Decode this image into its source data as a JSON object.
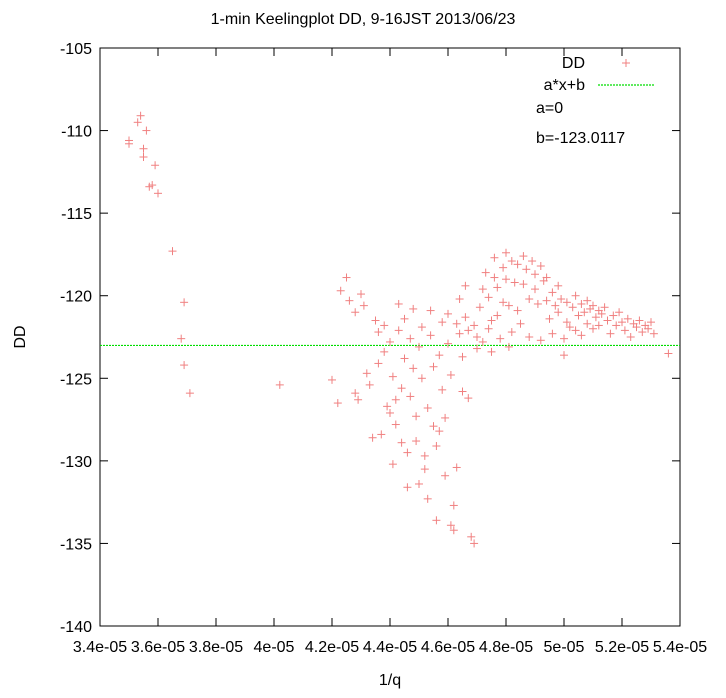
{
  "chart_data": {
    "type": "scatter",
    "title": "1-min Keelingplot DD, 9-16JST 2013/06/23",
    "xlabel": "1/q",
    "ylabel": "DD",
    "xlim": [
      3.4e-05,
      5.4e-05
    ],
    "ylim": [
      -140,
      -105
    ],
    "x_ticks": [
      "3.4e-05",
      "3.6e-05",
      "3.8e-05",
      "4e-05",
      "4.2e-05",
      "4.4e-05",
      "4.6e-05",
      "4.8e-05",
      "5e-05",
      "5.2e-05",
      "5.4e-05"
    ],
    "y_ticks": [
      "-105",
      "-110",
      "-115",
      "-120",
      "-125",
      "-130",
      "-135",
      "-140"
    ],
    "grid": false,
    "legend_position": "top-right",
    "series": [
      {
        "name": "DD",
        "marker": "+",
        "color": "#f08080",
        "points": [
          [
            3.5e-05,
            -110.6
          ],
          [
            3.5e-05,
            -110.8
          ],
          [
            3.53e-05,
            -109.5
          ],
          [
            3.54e-05,
            -109.1
          ],
          [
            3.55e-05,
            -111.1
          ],
          [
            3.55e-05,
            -111.6
          ],
          [
            3.56e-05,
            -110.0
          ],
          [
            3.57e-05,
            -113.4
          ],
          [
            3.58e-05,
            -113.3
          ],
          [
            3.59e-05,
            -112.1
          ],
          [
            3.6e-05,
            -113.8
          ],
          [
            3.65e-05,
            -117.3
          ],
          [
            3.68e-05,
            -122.6
          ],
          [
            3.69e-05,
            -120.4
          ],
          [
            3.69e-05,
            -124.2
          ],
          [
            3.71e-05,
            -125.9
          ],
          [
            4.02e-05,
            -125.4
          ],
          [
            4.2e-05,
            -125.1
          ],
          [
            4.22e-05,
            -126.5
          ],
          [
            4.23e-05,
            -119.7
          ],
          [
            4.25e-05,
            -118.9
          ],
          [
            4.26e-05,
            -120.3
          ],
          [
            4.28e-05,
            -121.0
          ],
          [
            4.28e-05,
            -125.9
          ],
          [
            4.29e-05,
            -126.3
          ],
          [
            4.3e-05,
            -119.9
          ],
          [
            4.31e-05,
            -120.6
          ],
          [
            4.32e-05,
            -124.7
          ],
          [
            4.33e-05,
            -125.4
          ],
          [
            4.34e-05,
            -128.6
          ],
          [
            4.35e-05,
            -121.5
          ],
          [
            4.36e-05,
            -122.2
          ],
          [
            4.36e-05,
            -124.1
          ],
          [
            4.37e-05,
            -128.4
          ],
          [
            4.38e-05,
            -121.8
          ],
          [
            4.38e-05,
            -123.4
          ],
          [
            4.39e-05,
            -126.7
          ],
          [
            4.4e-05,
            -127.1
          ],
          [
            4.4e-05,
            -122.8
          ],
          [
            4.41e-05,
            -124.9
          ],
          [
            4.41e-05,
            -130.2
          ],
          [
            4.42e-05,
            -126.3
          ],
          [
            4.42e-05,
            -127.8
          ],
          [
            4.43e-05,
            -120.5
          ],
          [
            4.43e-05,
            -122.1
          ],
          [
            4.44e-05,
            -128.9
          ],
          [
            4.44e-05,
            -125.6
          ],
          [
            4.45e-05,
            -121.4
          ],
          [
            4.45e-05,
            -123.8
          ],
          [
            4.46e-05,
            -129.5
          ],
          [
            4.46e-05,
            -131.6
          ],
          [
            4.47e-05,
            -126.1
          ],
          [
            4.47e-05,
            -122.6
          ],
          [
            4.48e-05,
            -120.8
          ],
          [
            4.48e-05,
            -124.4
          ],
          [
            4.49e-05,
            -127.3
          ],
          [
            4.49e-05,
            -128.8
          ],
          [
            4.5e-05,
            -131.4
          ],
          [
            4.5e-05,
            -123.1
          ],
          [
            4.51e-05,
            -121.9
          ],
          [
            4.51e-05,
            -125.0
          ],
          [
            4.52e-05,
            -129.7
          ],
          [
            4.52e-05,
            -130.5
          ],
          [
            4.53e-05,
            -132.3
          ],
          [
            4.53e-05,
            -126.8
          ],
          [
            4.54e-05,
            -122.4
          ],
          [
            4.54e-05,
            -120.9
          ],
          [
            4.55e-05,
            -124.3
          ],
          [
            4.55e-05,
            -127.9
          ],
          [
            4.56e-05,
            -129.1
          ],
          [
            4.56e-05,
            -133.6
          ],
          [
            4.57e-05,
            -128.2
          ],
          [
            4.57e-05,
            -123.6
          ],
          [
            4.58e-05,
            -121.6
          ],
          [
            4.58e-05,
            -125.7
          ],
          [
            4.59e-05,
            -130.9
          ],
          [
            4.59e-05,
            -127.4
          ],
          [
            4.6e-05,
            -122.9
          ],
          [
            4.6e-05,
            -121.1
          ],
          [
            4.61e-05,
            -124.8
          ],
          [
            4.61e-05,
            -133.9
          ],
          [
            4.62e-05,
            -134.2
          ],
          [
            4.62e-05,
            -132.7
          ],
          [
            4.63e-05,
            -130.4
          ],
          [
            4.63e-05,
            -121.7
          ],
          [
            4.64e-05,
            -122.3
          ],
          [
            4.64e-05,
            -120.2
          ],
          [
            4.65e-05,
            -123.7
          ],
          [
            4.65e-05,
            -125.8
          ],
          [
            4.66e-05,
            -121.3
          ],
          [
            4.66e-05,
            -119.4
          ],
          [
            4.67e-05,
            -122.1
          ],
          [
            4.67e-05,
            -126.2
          ],
          [
            4.68e-05,
            -134.6
          ],
          [
            4.69e-05,
            -135.0
          ],
          [
            4.69e-05,
            -121.8
          ],
          [
            4.7e-05,
            -122.5
          ],
          [
            4.7e-05,
            -123.2
          ],
          [
            4.71e-05,
            -120.7
          ],
          [
            4.72e-05,
            -119.6
          ],
          [
            4.72e-05,
            -122.8
          ],
          [
            4.73e-05,
            -118.6
          ],
          [
            4.74e-05,
            -120.1
          ],
          [
            4.74e-05,
            -122.0
          ],
          [
            4.75e-05,
            -121.5
          ],
          [
            4.75e-05,
            -123.4
          ],
          [
            4.76e-05,
            -118.9
          ],
          [
            4.76e-05,
            -117.7
          ],
          [
            4.77e-05,
            -119.5
          ],
          [
            4.77e-05,
            -121.2
          ],
          [
            4.78e-05,
            -122.6
          ],
          [
            4.79e-05,
            -120.4
          ],
          [
            4.79e-05,
            -118.3
          ],
          [
            4.8e-05,
            -117.4
          ],
          [
            4.8e-05,
            -119.0
          ],
          [
            4.81e-05,
            -120.6
          ],
          [
            4.81e-05,
            -123.1
          ],
          [
            4.82e-05,
            -122.2
          ],
          [
            4.82e-05,
            -117.9
          ],
          [
            4.83e-05,
            -119.2
          ],
          [
            4.84e-05,
            -118.1
          ],
          [
            4.84e-05,
            -120.9
          ],
          [
            4.85e-05,
            -121.7
          ],
          [
            4.86e-05,
            -117.6
          ],
          [
            4.86e-05,
            -119.3
          ],
          [
            4.87e-05,
            -118.4
          ],
          [
            4.88e-05,
            -120.2
          ],
          [
            4.88e-05,
            -122.5
          ],
          [
            4.89e-05,
            -117.9
          ],
          [
            4.9e-05,
            -118.7
          ],
          [
            4.9e-05,
            -119.6
          ],
          [
            4.91e-05,
            -120.5
          ],
          [
            4.92e-05,
            -118.2
          ],
          [
            4.92e-05,
            -122.7
          ],
          [
            4.93e-05,
            -119.1
          ],
          [
            4.94e-05,
            -120.3
          ],
          [
            4.94e-05,
            -118.9
          ],
          [
            4.95e-05,
            -121.4
          ],
          [
            4.96e-05,
            -119.8
          ],
          [
            4.96e-05,
            -122.3
          ],
          [
            4.97e-05,
            -120.6
          ],
          [
            4.98e-05,
            -119.4
          ],
          [
            4.98e-05,
            -121.0
          ],
          [
            4.99e-05,
            -120.2
          ],
          [
            5e-05,
            -122.6
          ],
          [
            5e-05,
            -123.6
          ],
          [
            5.01e-05,
            -121.6
          ],
          [
            5.01e-05,
            -120.4
          ],
          [
            5.02e-05,
            -121.9
          ],
          [
            5.03e-05,
            -120.7
          ],
          [
            5.04e-05,
            -122.1
          ],
          [
            5.04e-05,
            -120.0
          ],
          [
            5.05e-05,
            -121.2
          ],
          [
            5.06e-05,
            -120.5
          ],
          [
            5.06e-05,
            -122.4
          ],
          [
            5.07e-05,
            -121.0
          ],
          [
            5.08e-05,
            -120.3
          ],
          [
            5.08e-05,
            -121.7
          ],
          [
            5.09e-05,
            -120.8
          ],
          [
            5.1e-05,
            -122.0
          ],
          [
            5.1e-05,
            -120.6
          ],
          [
            5.11e-05,
            -121.3
          ],
          [
            5.12e-05,
            -120.9
          ],
          [
            5.12e-05,
            -121.8
          ],
          [
            5.13e-05,
            -121.1
          ],
          [
            5.14e-05,
            -120.7
          ],
          [
            5.15e-05,
            -121.5
          ],
          [
            5.16e-05,
            -122.3
          ],
          [
            5.17e-05,
            -121.2
          ],
          [
            5.18e-05,
            -121.8
          ],
          [
            5.19e-05,
            -121.0
          ],
          [
            5.2e-05,
            -121.6
          ],
          [
            5.21e-05,
            -122.1
          ],
          [
            5.22e-05,
            -121.4
          ],
          [
            5.23e-05,
            -122.5
          ],
          [
            5.24e-05,
            -121.7
          ],
          [
            5.25e-05,
            -121.9
          ],
          [
            5.26e-05,
            -121.5
          ],
          [
            5.27e-05,
            -122.2
          ],
          [
            5.28e-05,
            -121.8
          ],
          [
            5.29e-05,
            -122.0
          ],
          [
            5.3e-05,
            -121.6
          ],
          [
            5.31e-05,
            -122.3
          ],
          [
            5.36e-05,
            -123.5
          ]
        ]
      },
      {
        "name": "a*x+b",
        "type": "line",
        "color": "#00dd00",
        "a": 0,
        "b": -123.0117
      }
    ],
    "annotations": [
      "a=0",
      "b=-123.0117"
    ]
  }
}
